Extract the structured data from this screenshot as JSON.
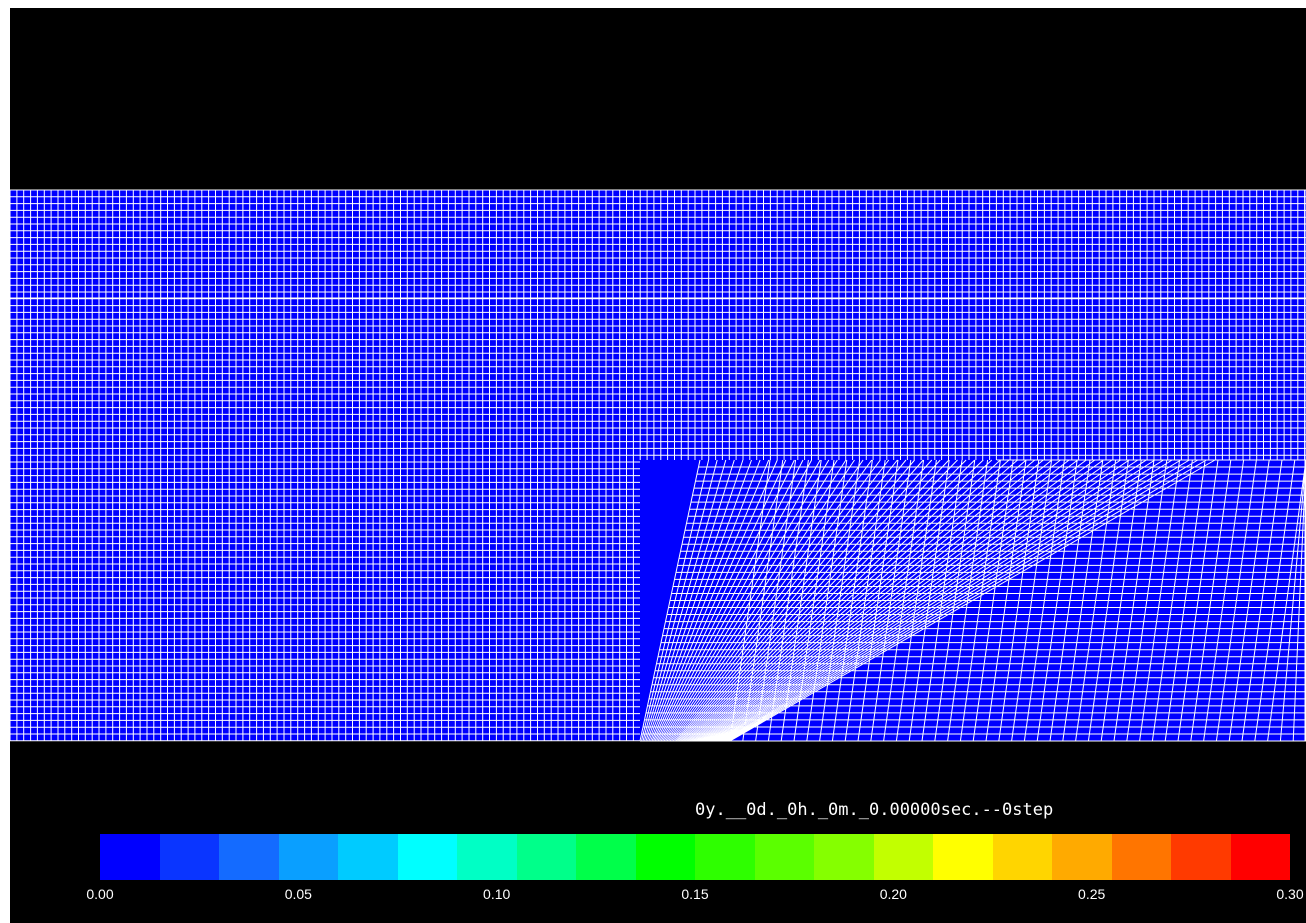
{
  "timestamp": "0y.__0d._0h._0m._0.00000sec.--0step",
  "colorbar": {
    "colors": [
      "#0000ff",
      "#0a35ff",
      "#146bff",
      "#0a9fff",
      "#00cbff",
      "#00ffff",
      "#00ffc5",
      "#00ff8a",
      "#00ff4a",
      "#00ff00",
      "#2eff00",
      "#5bff00",
      "#85ff00",
      "#c2ff00",
      "#ffff00",
      "#ffd500",
      "#ffaa00",
      "#ff7500",
      "#ff3a00",
      "#ff0000"
    ],
    "labels": [
      "0.00",
      "0.05",
      "0.10",
      "0.15",
      "0.20",
      "0.25",
      "0.30"
    ]
  },
  "mesh": {
    "fill": "#0000ff",
    "line": "#ffffff",
    "background": "#000000"
  }
}
